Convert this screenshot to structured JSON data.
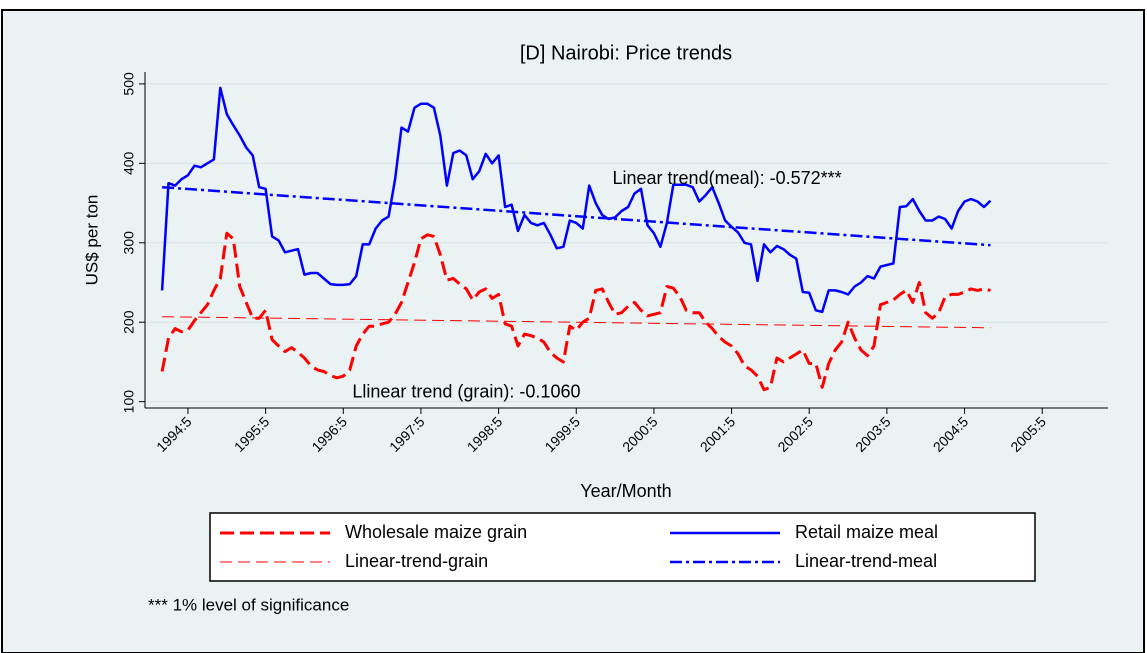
{
  "chart_data": {
    "type": "line",
    "title": "[D] Nairobi: Price trends",
    "x_label": "Year/Month",
    "y_label": "US$ per ton",
    "xlim": [
      1993.78,
      2006.18
    ],
    "ylim": [
      92,
      515
    ],
    "xticks": [
      {
        "value": 1994.333,
        "label": "1994:5"
      },
      {
        "value": 1995.333,
        "label": "1995:5"
      },
      {
        "value": 1996.333,
        "label": "1996:5"
      },
      {
        "value": 1997.333,
        "label": "1997:5"
      },
      {
        "value": 1998.333,
        "label": "1998:5"
      },
      {
        "value": 1999.333,
        "label": "1999:5"
      },
      {
        "value": 2000.333,
        "label": "2000:5"
      },
      {
        "value": 2001.333,
        "label": "2001:5"
      },
      {
        "value": 2002.333,
        "label": "2002:5"
      },
      {
        "value": 2003.333,
        "label": "2003:5"
      },
      {
        "value": 2004.333,
        "label": "2004:5"
      },
      {
        "value": 2005.333,
        "label": "2005:5"
      }
    ],
    "yticks": [
      100,
      200,
      300,
      400,
      500
    ],
    "grid": true,
    "x": [
      1994,
      1994.083,
      1994.167,
      1994.25,
      1994.333,
      1994.417,
      1994.5,
      1994.583,
      1994.667,
      1994.75,
      1994.833,
      1994.917,
      1995,
      1995.083,
      1995.167,
      1995.25,
      1995.333,
      1995.417,
      1995.5,
      1995.583,
      1995.667,
      1995.75,
      1995.833,
      1995.917,
      1996,
      1996.083,
      1996.167,
      1996.25,
      1996.333,
      1996.417,
      1996.5,
      1996.583,
      1996.667,
      1996.75,
      1996.833,
      1996.917,
      1997,
      1997.083,
      1997.167,
      1997.25,
      1997.333,
      1997.417,
      1997.5,
      1997.583,
      1997.667,
      1997.75,
      1997.833,
      1997.917,
      1998,
      1998.083,
      1998.167,
      1998.25,
      1998.333,
      1998.417,
      1998.5,
      1998.583,
      1998.667,
      1998.75,
      1998.833,
      1998.917,
      1999,
      1999.083,
      1999.167,
      1999.25,
      1999.333,
      1999.417,
      1999.5,
      1999.583,
      1999.667,
      1999.75,
      1999.833,
      1999.917,
      2000,
      2000.083,
      2000.167,
      2000.25,
      2000.333,
      2000.417,
      2000.5,
      2000.583,
      2000.667,
      2000.75,
      2000.833,
      2000.917,
      2001,
      2001.083,
      2001.167,
      2001.25,
      2001.333,
      2001.417,
      2001.5,
      2001.583,
      2001.667,
      2001.75,
      2001.833,
      2001.917,
      2002,
      2002.083,
      2002.167,
      2002.25,
      2002.333,
      2002.417,
      2002.5,
      2002.583,
      2002.667,
      2002.75,
      2002.833,
      2002.917,
      2003,
      2003.083,
      2003.167,
      2003.25,
      2003.333,
      2003.417,
      2003.5,
      2003.583,
      2003.667,
      2003.75,
      2003.833,
      2003.917,
      2004,
      2004.083,
      2004.167,
      2004.25,
      2004.333,
      2004.417,
      2004.5,
      2004.583,
      2004.667
    ],
    "series": [
      {
        "name": "Wholesale maize grain",
        "color": "#ff0000",
        "dash": "14 6",
        "width": 3,
        "values": [
          138,
          180,
          192,
          188,
          190,
          202,
          212,
          222,
          240,
          255,
          312,
          305,
          245,
          225,
          205,
          205,
          215,
          178,
          170,
          163,
          168,
          162,
          155,
          145,
          140,
          138,
          133,
          130,
          132,
          140,
          170,
          185,
          195,
          195,
          198,
          200,
          210,
          225,
          250,
          275,
          305,
          310,
          308,
          285,
          253,
          255,
          248,
          242,
          228,
          238,
          242,
          230,
          235,
          198,
          195,
          170,
          185,
          183,
          180,
          175,
          162,
          155,
          150,
          195,
          190,
          200,
          205,
          240,
          242,
          225,
          210,
          212,
          220,
          225,
          215,
          208,
          210,
          212,
          245,
          243,
          232,
          215,
          212,
          212,
          200,
          192,
          182,
          175,
          170,
          160,
          145,
          140,
          132,
          115,
          118,
          155,
          150,
          155,
          160,
          165,
          148,
          148,
          118,
          148,
          165,
          175,
          200,
          180,
          165,
          158,
          170,
          222,
          225,
          228,
          235,
          240,
          225,
          250,
          212,
          205,
          212,
          232,
          235,
          235,
          238,
          242,
          240,
          242,
          240
        ]
      },
      {
        "name": "Retail maize meal",
        "color": "#0000ff",
        "dash": "none",
        "width": 2.5,
        "values": [
          240,
          375,
          372,
          380,
          385,
          397,
          395,
          400,
          405,
          495,
          462,
          448,
          435,
          420,
          410,
          370,
          368,
          308,
          303,
          288,
          290,
          292,
          260,
          262,
          262,
          255,
          248,
          247,
          247,
          248,
          258,
          298,
          298,
          318,
          328,
          333,
          380,
          445,
          440,
          470,
          475,
          475,
          470,
          435,
          372,
          413,
          416,
          410,
          380,
          390,
          412,
          400,
          410,
          345,
          348,
          315,
          335,
          325,
          322,
          325,
          310,
          293,
          295,
          328,
          325,
          318,
          372,
          350,
          335,
          330,
          332,
          340,
          345,
          362,
          368,
          322,
          312,
          295,
          325,
          373,
          373,
          373,
          370,
          352,
          360,
          370,
          350,
          328,
          320,
          313,
          300,
          298,
          252,
          298,
          288,
          296,
          292,
          285,
          280,
          238,
          237,
          215,
          213,
          240,
          240,
          238,
          235,
          245,
          250,
          258,
          255,
          270,
          272,
          274,
          345,
          346,
          355,
          340,
          328,
          328,
          333,
          330,
          318,
          340,
          352,
          355,
          352,
          345,
          353
        ]
      },
      {
        "name": "Linear-trend-grain",
        "color": "#ff0000",
        "dash": "12 6",
        "width": 1,
        "x": [
          1994,
          2004.667
        ],
        "values": [
          207,
          193
        ]
      },
      {
        "name": "Linear-trend-meal",
        "color": "#0000ff",
        "dash": "12 4 3 4",
        "width": 2.5,
        "x": [
          1994,
          2004.667
        ],
        "values": [
          370,
          297
        ]
      }
    ],
    "annotations": [
      {
        "text": "Linear trend(meal): -0.572***",
        "x": 1999.8,
        "y": 380
      },
      {
        "text": "Llinear trend (grain): -0.1060",
        "x": 1996.45,
        "y": 111
      }
    ],
    "footnote": "*** 1% level of significance"
  }
}
